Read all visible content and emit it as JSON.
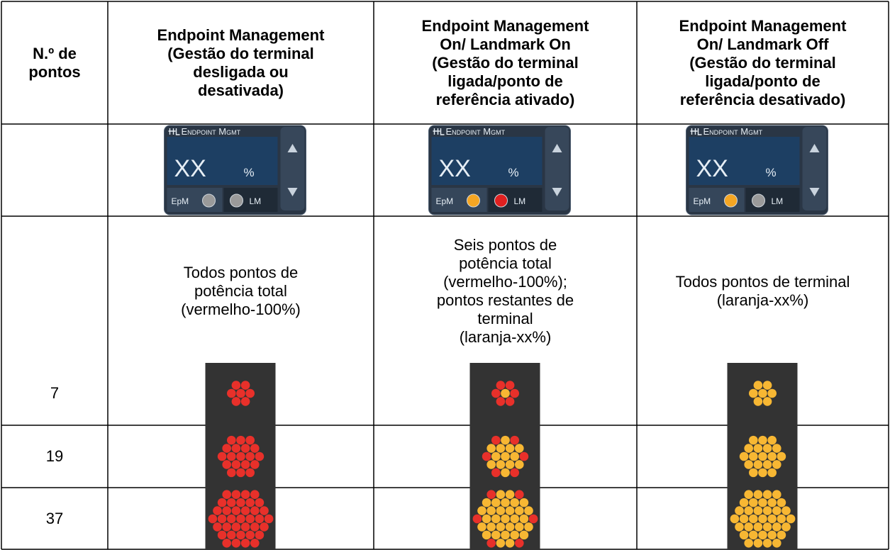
{
  "table": {
    "header": [
      "N.º de\npontos",
      "Endpoint Management\n(Gestão do terminal\ndesligada ou\ndesativada)",
      "Endpoint Management\nOn/ Landmark On\n(Gestão do terminal\nligada/ponto de\nreferência ativado)",
      "Endpoint Management\nOn/ Landmark Off\n(Gestão do terminal\nligada/ponto de\nreferência desativado)"
    ],
    "widgets": [
      {
        "title": "Endpoint Mgmt",
        "value": "XX",
        "unit": "%",
        "epm": "EpM",
        "lm": "LM",
        "epm_color": "#9a9a9a",
        "lm_color": "#9a9a9a"
      },
      {
        "title": "Endpoint Mgmt",
        "value": "XX",
        "unit": "%",
        "epm": "EpM",
        "lm": "LM",
        "epm_color": "#f5a623",
        "lm_color": "#e02020"
      },
      {
        "title": "Endpoint Mgmt",
        "value": "XX",
        "unit": "%",
        "epm": "EpM",
        "lm": "LM",
        "epm_color": "#f5a623",
        "lm_color": "#9a9a9a"
      }
    ],
    "descriptions": [
      "Todos pontos de\npotência total\n(vermelho-100%)",
      "Seis pontos de\npotência total\n(vermelho-100%);\npontos restantes de\nterminal\n(laranja-xx%)",
      "Todos pontos de terminal\n(laranja-xx%)"
    ],
    "dot_colors": [
      {
        "dot": "#e8302a"
      },
      {
        "dot": "#f7b733",
        "landmark": "#e8302a"
      },
      {
        "dot": "#f7b733"
      }
    ],
    "rows": [
      7,
      19,
      37
    ]
  }
}
